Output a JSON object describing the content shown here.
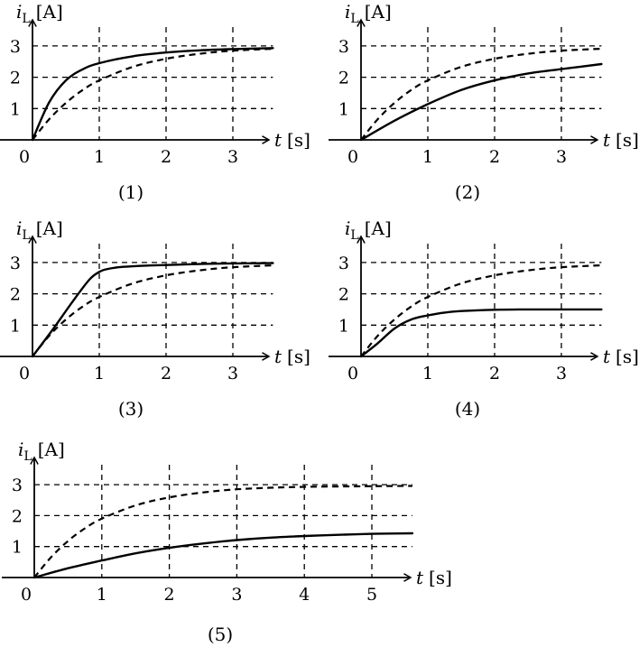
{
  "chart_data": [
    {
      "type": "line",
      "caption": "(1)",
      "ylabel": {
        "symbol": "i",
        "sub": "L",
        "unit": "[A]"
      },
      "xlabel": {
        "symbol": "t",
        "unit": "[s]"
      },
      "origin_label": "0",
      "xticks": [
        "1",
        "2",
        "3"
      ],
      "yticks": [
        "1",
        "2",
        "3"
      ],
      "xlim": [
        0,
        3.6
      ],
      "ylim": [
        0,
        3.5
      ],
      "grid": "dashed",
      "series": [
        {
          "style": "solid",
          "x": [
            0,
            0.25,
            0.5,
            0.75,
            1,
            1.5,
            2,
            2.5,
            3,
            3.6
          ],
          "y": [
            0,
            1.2,
            1.9,
            2.25,
            2.45,
            2.67,
            2.79,
            2.86,
            2.9,
            2.93
          ]
        },
        {
          "style": "dashed",
          "x": [
            0,
            0.25,
            0.5,
            0.75,
            1,
            1.5,
            2,
            2.5,
            3,
            3.6
          ],
          "y": [
            0,
            0.66,
            1.18,
            1.59,
            1.9,
            2.33,
            2.59,
            2.75,
            2.85,
            2.91
          ]
        }
      ]
    },
    {
      "type": "line",
      "caption": "(2)",
      "ylabel": {
        "symbol": "i",
        "sub": "L",
        "unit": "[A]"
      },
      "xlabel": {
        "symbol": "t",
        "unit": "[s]"
      },
      "origin_label": "0",
      "xticks": [
        "1",
        "2",
        "3"
      ],
      "yticks": [
        "1",
        "2",
        "3"
      ],
      "xlim": [
        0,
        3.6
      ],
      "ylim": [
        0,
        3.5
      ],
      "grid": "dashed",
      "series": [
        {
          "style": "solid",
          "x": [
            0,
            0.5,
            1,
            1.5,
            2,
            2.5,
            3,
            3.6
          ],
          "y": [
            0,
            0.61,
            1.14,
            1.59,
            1.9,
            2.12,
            2.26,
            2.42
          ]
        },
        {
          "style": "dashed",
          "x": [
            0,
            0.25,
            0.5,
            0.75,
            1,
            1.5,
            2,
            2.5,
            3,
            3.6
          ],
          "y": [
            0,
            0.66,
            1.18,
            1.59,
            1.9,
            2.33,
            2.59,
            2.75,
            2.85,
            2.91
          ]
        }
      ]
    },
    {
      "type": "line",
      "caption": "(3)",
      "ylabel": {
        "symbol": "i",
        "sub": "L",
        "unit": "[A]"
      },
      "xlabel": {
        "symbol": "t",
        "unit": "[s]"
      },
      "origin_label": "0",
      "xticks": [
        "1",
        "2",
        "3"
      ],
      "yticks": [
        "1",
        "2",
        "3"
      ],
      "xlim": [
        0,
        3.6
      ],
      "ylim": [
        0,
        3.5
      ],
      "grid": "dashed",
      "series": [
        {
          "style": "solid",
          "x": [
            0,
            0.3,
            0.6,
            0.85,
            1,
            1.1,
            1.3,
            1.6,
            2,
            2.5,
            3,
            3.6
          ],
          "y": [
            0,
            0.85,
            1.75,
            2.45,
            2.7,
            2.78,
            2.85,
            2.89,
            2.92,
            2.95,
            2.97,
            2.98
          ]
        },
        {
          "style": "dashed",
          "x": [
            0,
            0.25,
            0.5,
            0.75,
            1,
            1.5,
            2,
            2.5,
            3,
            3.6
          ],
          "y": [
            0,
            0.66,
            1.18,
            1.59,
            1.9,
            2.33,
            2.59,
            2.75,
            2.85,
            2.91
          ]
        }
      ]
    },
    {
      "type": "line",
      "caption": "(4)",
      "ylabel": {
        "symbol": "i",
        "sub": "L",
        "unit": "[A]"
      },
      "xlabel": {
        "symbol": "t",
        "unit": "[s]"
      },
      "origin_label": "0",
      "xticks": [
        "1",
        "2",
        "3"
      ],
      "yticks": [
        "1",
        "2",
        "3"
      ],
      "xlim": [
        0,
        3.6
      ],
      "ylim": [
        0,
        3.5
      ],
      "grid": "dashed",
      "series": [
        {
          "style": "solid",
          "x": [
            0,
            0.25,
            0.5,
            0.75,
            1,
            1.25,
            1.5,
            2,
            2.5,
            3,
            3.6
          ],
          "y": [
            0,
            0.42,
            0.89,
            1.18,
            1.31,
            1.4,
            1.45,
            1.49,
            1.5,
            1.5,
            1.5
          ]
        },
        {
          "style": "dashed",
          "x": [
            0,
            0.25,
            0.5,
            0.75,
            1,
            1.5,
            2,
            2.5,
            3,
            3.6
          ],
          "y": [
            0,
            0.66,
            1.18,
            1.59,
            1.9,
            2.33,
            2.59,
            2.75,
            2.85,
            2.91
          ]
        }
      ]
    },
    {
      "type": "line",
      "caption": "(5)",
      "ylabel": {
        "symbol": "i",
        "sub": "L",
        "unit": "[A]"
      },
      "xlabel": {
        "symbol": "t",
        "unit": "[s]"
      },
      "origin_label": "0",
      "xticks": [
        "1",
        "2",
        "3",
        "4",
        "5"
      ],
      "yticks": [
        "1",
        "2",
        "3"
      ],
      "xlim": [
        0,
        5.6
      ],
      "ylim": [
        0,
        3.5
      ],
      "grid": "dashed",
      "series": [
        {
          "style": "solid",
          "x": [
            0,
            0.5,
            1,
            1.5,
            2,
            2.5,
            3,
            3.5,
            4,
            4.5,
            5,
            5.6
          ],
          "y": [
            0,
            0.3,
            0.55,
            0.78,
            0.96,
            1.1,
            1.21,
            1.29,
            1.34,
            1.38,
            1.41,
            1.43
          ]
        },
        {
          "style": "dashed",
          "x": [
            0,
            0.25,
            0.5,
            0.75,
            1,
            1.5,
            2,
            2.5,
            3,
            3.5,
            4,
            5,
            5.6
          ],
          "y": [
            0,
            0.66,
            1.18,
            1.59,
            1.9,
            2.33,
            2.59,
            2.75,
            2.85,
            2.9,
            2.93,
            2.95,
            2.96
          ]
        }
      ]
    }
  ]
}
